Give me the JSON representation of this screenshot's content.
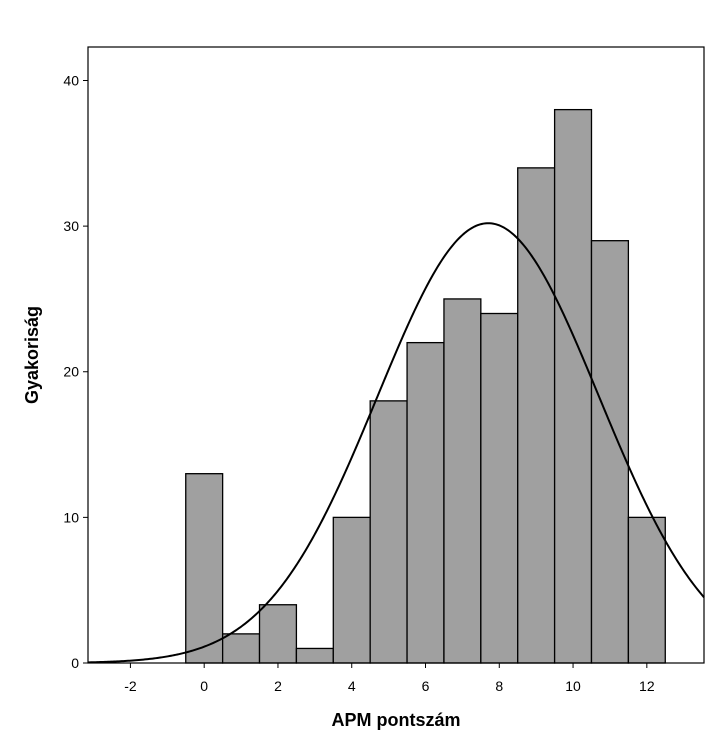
{
  "chart_data": {
    "type": "bar",
    "subtype": "histogram",
    "xlabel": "APM pontszám",
    "ylabel": "Gyakoriság",
    "xlim": [
      -3.15,
      13.55
    ],
    "ylim": [
      0,
      42.3
    ],
    "xticks": [
      -2,
      0,
      2,
      4,
      6,
      8,
      10,
      12
    ],
    "yticks": [
      0,
      10,
      20,
      30,
      40
    ],
    "bin_width": 1,
    "bins": [
      {
        "center": 0,
        "value": 13
      },
      {
        "center": 1,
        "value": 2
      },
      {
        "center": 2,
        "value": 4
      },
      {
        "center": 3,
        "value": 1
      },
      {
        "center": 4,
        "value": 10
      },
      {
        "center": 5,
        "value": 18
      },
      {
        "center": 6,
        "value": 22
      },
      {
        "center": 7,
        "value": 25
      },
      {
        "center": 8,
        "value": 24
      },
      {
        "center": 9,
        "value": 34
      },
      {
        "center": 10,
        "value": 38
      },
      {
        "center": 11,
        "value": 29
      },
      {
        "center": 12,
        "value": 10
      }
    ],
    "normal_curve": {
      "mean": 7.7,
      "sd": 3.0,
      "peak": 30.2
    },
    "bar_color": "#a0a0a0",
    "grid": false,
    "legend": "none"
  }
}
